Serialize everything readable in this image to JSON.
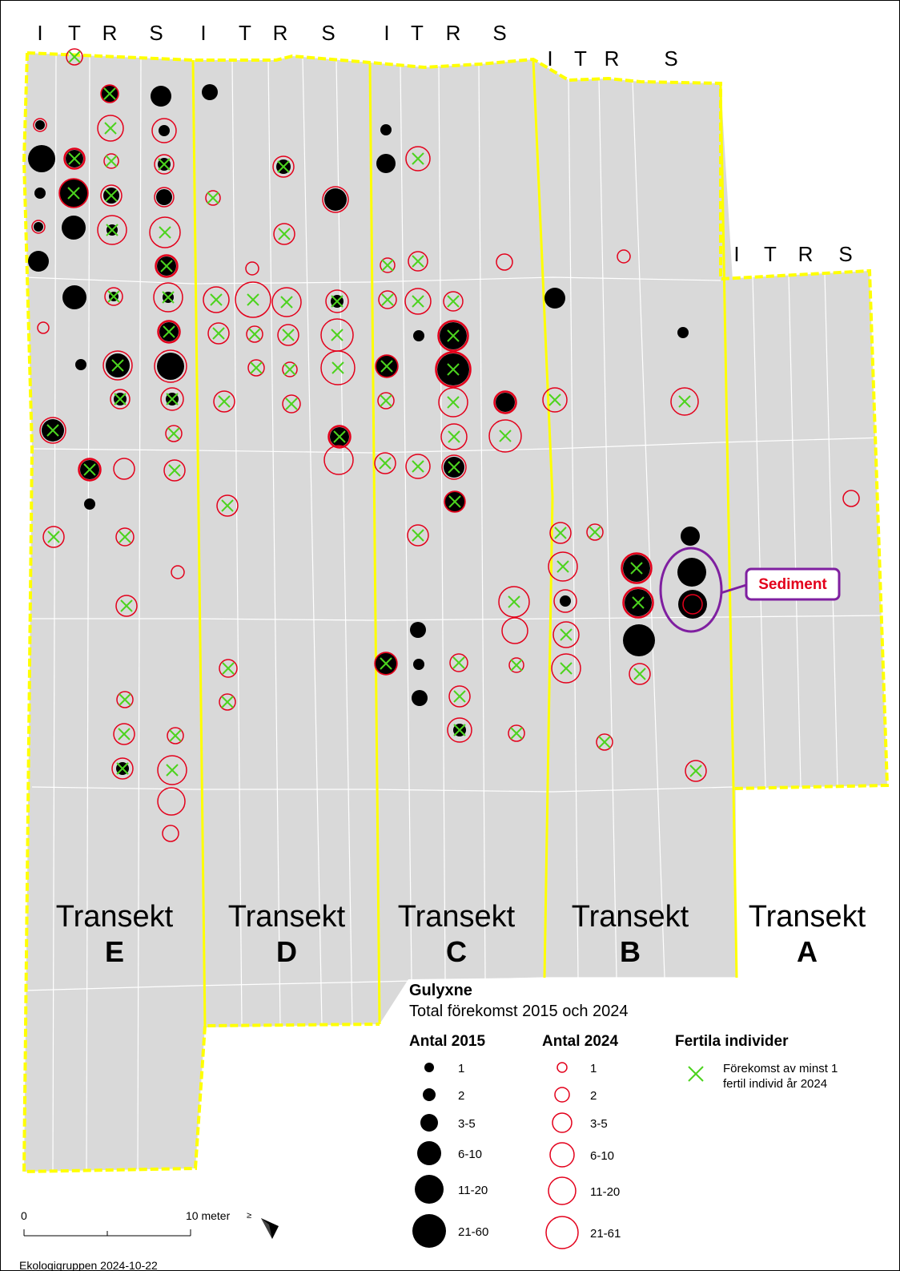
{
  "map": {
    "title": "Gulyxne",
    "subtitle": "Total förekomst 2015 och 2024",
    "column_headers": [
      "I",
      "T",
      "R",
      "S"
    ],
    "transects": [
      {
        "name": "Transekt",
        "letter": "E"
      },
      {
        "name": "Transekt",
        "letter": "D"
      },
      {
        "name": "Transekt",
        "letter": "C"
      },
      {
        "name": "Transekt",
        "letter": "B"
      },
      {
        "name": "Transekt",
        "letter": "A"
      }
    ],
    "annotation": "Sediment",
    "colors": {
      "plot_fill": "#d9d9d9",
      "transect_border": "#ffff00",
      "count_2015": "#000000",
      "count_2024": "#e3001b",
      "fertile": "#4cd31e",
      "annotation": "#7f1fa0"
    }
  },
  "legend": {
    "antal_2015": {
      "heading": "Antal 2015",
      "classes": [
        "1",
        "2",
        "3-5",
        "6-10",
        "11-20",
        "21-60"
      ]
    },
    "antal_2024": {
      "heading": "Antal 2024",
      "classes": [
        "1",
        "2",
        "3-5",
        "6-10",
        "11-20",
        "21-61"
      ]
    },
    "fertila": {
      "heading": "Fertila individer",
      "text_line1": "Förekomst av minst 1",
      "text_line2": "fertil individ år 2024"
    }
  },
  "scalebar": {
    "start": "0",
    "end": "10 meter"
  },
  "credit": "Ekologigruppen 2024-10-22"
}
